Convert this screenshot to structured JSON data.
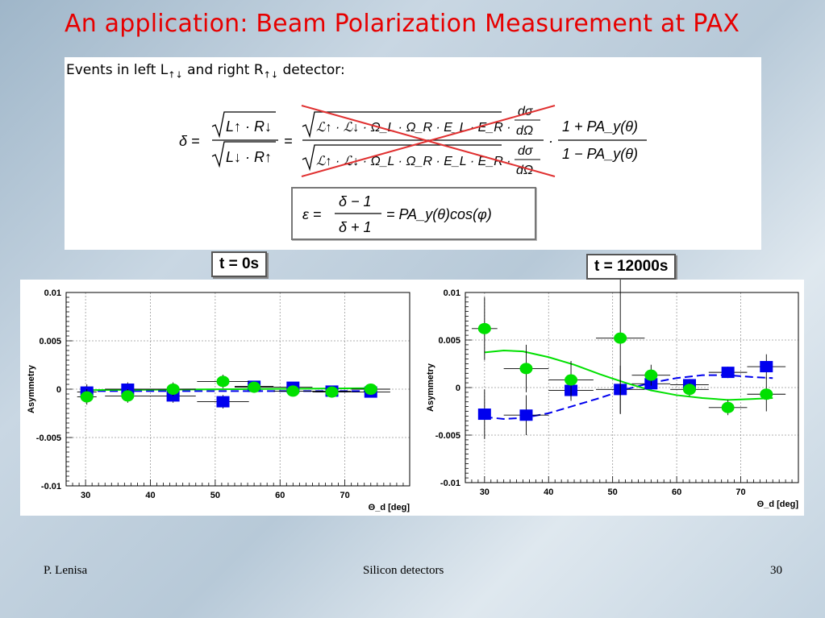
{
  "slide": {
    "title": "An application: Beam Polarization Measurement at PAX",
    "intro_prefix": "Events in left L",
    "intro_mid": " and right R",
    "intro_suffix": " detector:",
    "arrows_sub": "↑↓",
    "footer_left": "P. Lenisa",
    "footer_center": "Silicon detectors",
    "footer_right": "30"
  },
  "formulas": {
    "delta_lhs": "δ =",
    "delta_num": "L↑ · R↓",
    "delta_den": "L↓ · R↑",
    "eq_sign": "=",
    "crossed_num": "ℒ↑ · ℒ↓ · Ω_L · Ω_R · E_L · E_R ·",
    "crossed_den": "ℒ↑ · ℒ↓ · Ω_L · Ω_R · E_L · E_R ·",
    "dsig": "dσ",
    "domega": "dΩ",
    "ratio_num": "1 + PA_y(θ)",
    "ratio_den": "1 − PA_y(θ)",
    "eps_lhs": "ε =",
    "eps_num": "δ − 1",
    "eps_den": "δ + 1",
    "eps_rhs": "= PA_y(θ)cos(φ)"
  },
  "labels": {
    "left": "t = 0s",
    "right": "t = 12000s"
  },
  "colors": {
    "blue": "#0000ee",
    "green": "#00e000",
    "title": "#e60000",
    "cross": "#e03030"
  },
  "chart_data": [
    {
      "type": "scatter",
      "ylabel": "Asymmetry",
      "xlabel": "Θ_d [deg]",
      "xlim": [
        27,
        80
      ],
      "ylim": [
        -0.01,
        0.01
      ],
      "xticks": [
        30,
        40,
        50,
        60,
        70
      ],
      "yticks": [
        0.01,
        0.005,
        0,
        -0.005,
        -0.01
      ],
      "ytick_labels": [
        "0.01",
        "0.005",
        "0",
        "-0.005",
        "-0.01"
      ],
      "grid": true,
      "series": [
        {
          "marker": "square",
          "color": "#0000ee",
          "x": [
            30.2,
            36.5,
            43.5,
            51.2,
            56.0,
            62.0,
            68.0,
            74.0
          ],
          "y": [
            -0.0003,
            0.0,
            -0.0007,
            -0.0013,
            0.0003,
            0.0002,
            -0.0002,
            -0.0003
          ],
          "yerr": [
            0.0008,
            0.0007,
            0.0007,
            0.0007,
            0.0005,
            0.0005,
            0.0004,
            0.0004
          ],
          "xerr": [
            1.5,
            3.5,
            3.5,
            4.0,
            3.0,
            3.0,
            3.0,
            3.0
          ]
        },
        {
          "marker": "circle",
          "color": "#00e000",
          "x": [
            30.2,
            36.5,
            43.5,
            51.2,
            56.0,
            62.0,
            68.0,
            74.0
          ],
          "y": [
            -0.0008,
            -0.0007,
            0.0,
            0.0008,
            0.0002,
            -0.0002,
            -0.0003,
            0.0
          ],
          "yerr": [
            0.0008,
            0.0007,
            0.0007,
            0.0007,
            0.0005,
            0.0005,
            0.0004,
            0.0004
          ],
          "xerr": [
            1.5,
            3.5,
            3.5,
            4.0,
            3.0,
            3.0,
            3.0,
            3.0
          ]
        }
      ],
      "fit_lines": [
        {
          "color": "#0000ee",
          "dash": true,
          "x": [
            30,
            74
          ],
          "y": [
            -0.0002,
            -0.0002
          ]
        },
        {
          "color": "#00e000",
          "dash": false,
          "x": [
            30,
            74
          ],
          "y": [
            -0.0001,
            0.0001
          ]
        }
      ]
    },
    {
      "type": "scatter",
      "ylabel": "Asymmetry",
      "xlabel": "Θ_d [deg]",
      "xlim": [
        27,
        79
      ],
      "ylim": [
        -0.01,
        0.01
      ],
      "xticks": [
        30,
        40,
        50,
        60,
        70
      ],
      "yticks": [
        0.01,
        0.005,
        0,
        -0.005,
        -0.01
      ],
      "ytick_labels": [
        "0.01",
        "0.005",
        "0",
        "-0.005",
        "-0.01"
      ],
      "grid": true,
      "series": [
        {
          "marker": "square",
          "color": "#0000ee",
          "x": [
            30.0,
            36.5,
            43.5,
            51.2,
            56.0,
            62.0,
            68.0,
            74.0
          ],
          "y": [
            -0.0028,
            -0.0029,
            -0.0003,
            -0.0002,
            0.0004,
            0.0003,
            0.0016,
            0.0022
          ],
          "yerr": [
            0.0026,
            0.0021,
            0.0011,
            0.0025,
            0.0006,
            0.0006,
            0.0006,
            0.0013
          ],
          "xerr": [
            0.0,
            3.5,
            3.5,
            3.8,
            3.0,
            3.0,
            3.0,
            3.0
          ]
        },
        {
          "marker": "circle",
          "color": "#00e000",
          "x": [
            30.0,
            36.5,
            43.5,
            51.2,
            56.0,
            62.0,
            68.0,
            74.0
          ],
          "y": [
            0.0062,
            0.002,
            0.0008,
            0.0052,
            0.0013,
            -0.0002,
            -0.0021,
            -0.0007
          ],
          "yerr": [
            0.0033,
            0.0025,
            0.002,
            0.008,
            0.0011,
            0.0007,
            0.0008,
            0.0018
          ],
          "xerr": [
            2.0,
            3.5,
            3.5,
            3.8,
            3.0,
            3.0,
            3.0,
            3.0
          ]
        }
      ],
      "fit_lines": [
        {
          "color": "#0000ee",
          "dash": true,
          "x": [
            30,
            33,
            36,
            40,
            44,
            48,
            52,
            56,
            60,
            64,
            68,
            72,
            75
          ],
          "y": [
            -0.0031,
            -0.0033,
            -0.0032,
            -0.0027,
            -0.0019,
            -0.0011,
            -0.0002,
            0.0005,
            0.001,
            0.0013,
            0.0013,
            0.0011,
            0.001
          ]
        },
        {
          "color": "#00e000",
          "dash": false,
          "x": [
            30,
            33,
            36,
            40,
            44,
            48,
            52,
            56,
            60,
            64,
            68,
            72,
            75
          ],
          "y": [
            0.0037,
            0.0039,
            0.0038,
            0.0032,
            0.0024,
            0.0014,
            0.0005,
            -0.0003,
            -0.0008,
            -0.0011,
            -0.0013,
            -0.0012,
            -0.0011
          ]
        }
      ]
    }
  ]
}
